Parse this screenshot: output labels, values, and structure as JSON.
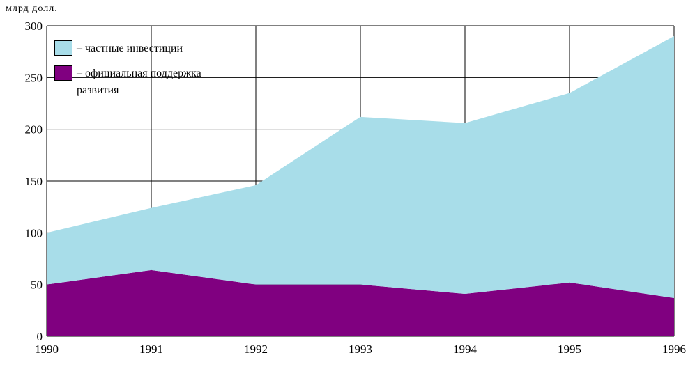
{
  "chart_data": {
    "type": "stacked_area",
    "ylabel": "млрд долл.",
    "categories": [
      "1990",
      "1991",
      "1992",
      "1993",
      "1994",
      "1995",
      "1996"
    ],
    "series": [
      {
        "name": "официальная поддержка развития",
        "color": "#800080",
        "values": [
          50,
          64,
          50,
          50,
          41,
          52,
          37
        ]
      },
      {
        "name": "частные инвестиции",
        "color": "#a8dde9",
        "values": [
          50,
          60,
          96,
          162,
          165,
          183,
          253
        ]
      }
    ],
    "ylim": [
      0,
      300
    ],
    "yticks": [
      0,
      50,
      100,
      150,
      200,
      250,
      300
    ],
    "grid": true
  }
}
